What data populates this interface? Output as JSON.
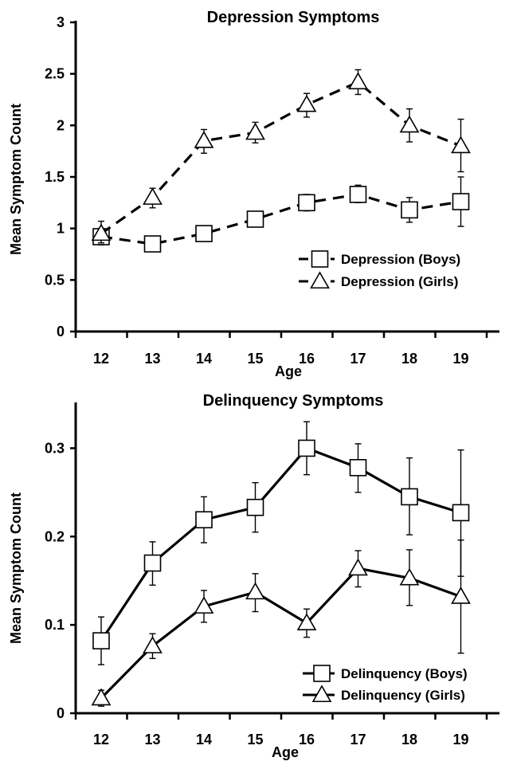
{
  "chart_data": [
    {
      "type": "line",
      "title": "Depression Symptoms",
      "xlabel": "Age",
      "ylabel": "Mean Symptom Count",
      "categories": [
        "12",
        "13",
        "14",
        "15",
        "16",
        "17",
        "18",
        "19"
      ],
      "ylim": [
        0,
        3
      ],
      "yticks": [
        "0",
        "0.5",
        "1",
        "1.5",
        "2",
        "2.5",
        "3"
      ],
      "grid": false,
      "legend_position": "lower-right",
      "line_style": "dashed",
      "series": [
        {
          "name": "Depression (Boys)",
          "marker": "square",
          "values": [
            0.92,
            0.85,
            0.95,
            1.09,
            1.25,
            1.33,
            1.18,
            1.26
          ],
          "err_low": [
            0.84,
            0.8,
            0.9,
            1.02,
            1.17,
            1.25,
            1.06,
            1.02
          ],
          "err_high": [
            1.0,
            0.9,
            1.0,
            1.16,
            1.33,
            1.42,
            1.3,
            1.5
          ]
        },
        {
          "name": "Depression (Girls)",
          "marker": "triangle",
          "values": [
            0.95,
            1.3,
            1.85,
            1.93,
            2.2,
            2.42,
            2.0,
            1.8
          ],
          "err_low": [
            0.86,
            1.2,
            1.73,
            1.83,
            2.08,
            2.3,
            1.84,
            1.55
          ],
          "err_high": [
            1.07,
            1.39,
            1.96,
            2.03,
            2.31,
            2.54,
            2.16,
            2.06
          ]
        }
      ]
    },
    {
      "type": "line",
      "title": "Delinquency Symptoms",
      "xlabel": "Age",
      "ylabel": "Mean Symptom Count",
      "categories": [
        "12",
        "13",
        "14",
        "15",
        "16",
        "17",
        "18",
        "19"
      ],
      "ylim": [
        0,
        0.35
      ],
      "yticks": [
        "0",
        "0.1",
        "0.2",
        "0.3"
      ],
      "grid": false,
      "legend_position": "lower-right",
      "line_style": "solid",
      "series": [
        {
          "name": "Delinquency (Boys)",
          "marker": "square",
          "values": [
            0.082,
            0.17,
            0.219,
            0.233,
            0.3,
            0.278,
            0.245,
            0.227
          ],
          "err_low": [
            0.055,
            0.145,
            0.193,
            0.205,
            0.27,
            0.25,
            0.202,
            0.155
          ],
          "err_high": [
            0.109,
            0.194,
            0.245,
            0.261,
            0.33,
            0.305,
            0.289,
            0.298
          ]
        },
        {
          "name": "Delinquency (Girls)",
          "marker": "triangle",
          "values": [
            0.017,
            0.076,
            0.121,
            0.137,
            0.102,
            0.164,
            0.153,
            0.132
          ],
          "err_low": [
            0.008,
            0.062,
            0.103,
            0.115,
            0.086,
            0.143,
            0.122,
            0.068
          ],
          "err_high": [
            0.026,
            0.09,
            0.139,
            0.158,
            0.118,
            0.184,
            0.185,
            0.196
          ]
        }
      ]
    }
  ]
}
